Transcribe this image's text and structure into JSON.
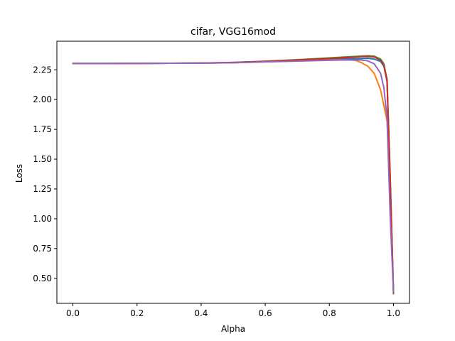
{
  "chart_data": {
    "type": "line",
    "title": "cifar, VGG16mod",
    "xlabel": "Alpha",
    "ylabel": "Loss",
    "xlim": [
      -0.05,
      1.05
    ],
    "ylim": [
      0.29,
      2.49
    ],
    "xticks": [
      0.0,
      0.2,
      0.4,
      0.6,
      0.8,
      1.0
    ],
    "xtick_labels": [
      "0.0",
      "0.2",
      "0.4",
      "0.6",
      "0.8",
      "1.0"
    ],
    "yticks": [
      0.5,
      0.75,
      1.0,
      1.25,
      1.5,
      1.75,
      2.0,
      2.25
    ],
    "ytick_labels": [
      "0.50",
      "0.75",
      "1.00",
      "1.25",
      "1.50",
      "1.75",
      "2.00",
      "2.25"
    ],
    "grid": false,
    "legend": "none",
    "series": [
      {
        "color": "#1f77b4",
        "x": [
          0.0,
          0.1,
          0.2,
          0.3,
          0.4,
          0.5,
          0.6,
          0.7,
          0.8,
          0.85,
          0.9,
          0.92,
          0.94,
          0.96,
          0.97,
          0.98,
          0.99,
          1.0
        ],
        "y": [
          2.303,
          2.303,
          2.304,
          2.305,
          2.306,
          2.31,
          2.318,
          2.328,
          2.338,
          2.342,
          2.345,
          2.346,
          2.34,
          2.32,
          2.28,
          2.15,
          1.3,
          0.4
        ]
      },
      {
        "color": "#ff7f0e",
        "x": [
          0.0,
          0.1,
          0.2,
          0.3,
          0.4,
          0.5,
          0.6,
          0.7,
          0.8,
          0.85,
          0.88,
          0.9,
          0.92,
          0.94,
          0.96,
          0.98,
          0.99,
          1.0
        ],
        "y": [
          2.303,
          2.303,
          2.304,
          2.305,
          2.306,
          2.31,
          2.317,
          2.325,
          2.332,
          2.334,
          2.33,
          2.31,
          2.28,
          2.22,
          2.08,
          1.82,
          1.1,
          0.4
        ]
      },
      {
        "color": "#2ca02c",
        "x": [
          0.0,
          0.1,
          0.2,
          0.3,
          0.4,
          0.5,
          0.6,
          0.7,
          0.8,
          0.85,
          0.9,
          0.92,
          0.94,
          0.96,
          0.97,
          0.98,
          0.99,
          1.0
        ],
        "y": [
          2.303,
          2.303,
          2.304,
          2.305,
          2.307,
          2.312,
          2.322,
          2.335,
          2.35,
          2.358,
          2.365,
          2.368,
          2.365,
          2.34,
          2.3,
          2.17,
          1.35,
          0.37
        ]
      },
      {
        "color": "#d62728",
        "x": [
          0.0,
          0.1,
          0.2,
          0.3,
          0.4,
          0.5,
          0.6,
          0.7,
          0.8,
          0.85,
          0.9,
          0.92,
          0.94,
          0.96,
          0.97,
          0.98,
          0.99,
          1.0
        ],
        "y": [
          2.303,
          2.303,
          2.304,
          2.305,
          2.307,
          2.312,
          2.321,
          2.332,
          2.345,
          2.352,
          2.36,
          2.362,
          2.358,
          2.33,
          2.29,
          2.16,
          1.3,
          0.38
        ]
      },
      {
        "color": "#9467bd",
        "x": [
          0.0,
          0.1,
          0.2,
          0.3,
          0.4,
          0.5,
          0.6,
          0.7,
          0.8,
          0.85,
          0.9,
          0.92,
          0.94,
          0.96,
          0.97,
          0.98,
          0.99,
          1.0
        ],
        "y": [
          2.303,
          2.303,
          2.304,
          2.305,
          2.306,
          2.309,
          2.316,
          2.323,
          2.33,
          2.333,
          2.332,
          2.325,
          2.3,
          2.22,
          2.1,
          1.85,
          1.0,
          0.39
        ]
      }
    ]
  }
}
